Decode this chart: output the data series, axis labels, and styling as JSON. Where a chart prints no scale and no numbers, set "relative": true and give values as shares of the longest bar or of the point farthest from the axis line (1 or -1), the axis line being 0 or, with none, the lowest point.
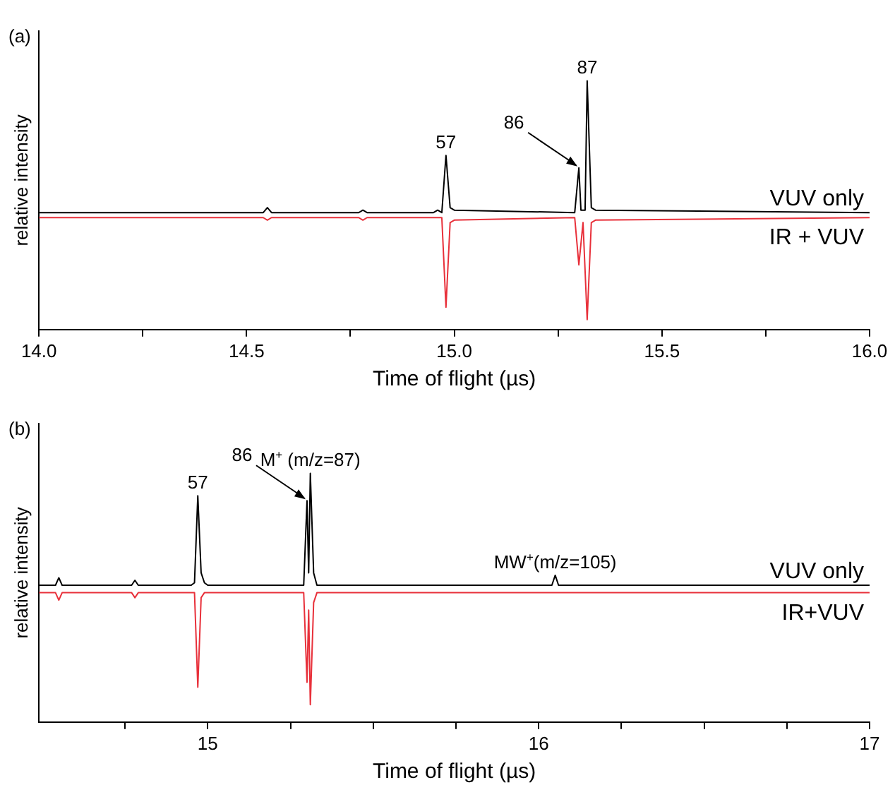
{
  "chart_data": [
    {
      "type": "line",
      "title": "(a)",
      "xlabel": "Time of flight (µs)",
      "ylabel": "relative intensity",
      "relative": true,
      "xlim": [
        14.0,
        16.0
      ],
      "xticks": [
        {
          "value": 14,
          "label": "14.0"
        },
        {
          "value": 14.25,
          "label": null
        },
        14.5,
        {
          "value": 14.75,
          "label": null
        },
        {
          "value": 15,
          "label": "15.0"
        },
        {
          "value": 15.25,
          "label": null
        },
        15.5,
        {
          "value": 15.75,
          "label": null
        },
        {
          "value": 16,
          "label": "16.0"
        }
      ],
      "grid": false,
      "legend": false,
      "marker": "none",
      "line_style": "solid",
      "series": [
        {
          "name": "VUV only",
          "color": "#000000",
          "x": [
            14.0,
            14.54,
            14.55,
            14.56,
            14.77,
            14.78,
            14.79,
            14.95,
            14.96,
            14.97,
            14.98,
            14.99,
            15.0,
            15.29,
            15.3,
            15.305,
            15.315,
            15.32,
            15.33,
            15.34,
            16.0
          ],
          "values": [
            0.47,
            0.47,
            0.49,
            0.47,
            0.47,
            0.48,
            0.47,
            0.47,
            0.48,
            0.47,
            0.7,
            0.49,
            0.48,
            0.47,
            0.65,
            0.48,
            0.48,
            1.0,
            0.49,
            0.48,
            0.47
          ]
        },
        {
          "name": "IR + VUV",
          "color": "#e8303a",
          "x": [
            14.0,
            14.54,
            14.55,
            14.56,
            14.77,
            14.78,
            14.79,
            14.97,
            14.98,
            14.99,
            15.0,
            15.29,
            15.3,
            15.31,
            15.32,
            15.33,
            15.34,
            16.0
          ],
          "values": [
            0.45,
            0.45,
            0.44,
            0.45,
            0.45,
            0.44,
            0.45,
            0.45,
            0.09,
            0.43,
            0.44,
            0.45,
            0.26,
            0.43,
            0.04,
            0.43,
            0.44,
            0.45
          ]
        }
      ],
      "annotations": [
        {
          "text": "57",
          "x": 14.98,
          "y": 0.7
        },
        {
          "text": "86",
          "x": 15.3,
          "y": 0.65
        },
        {
          "text": "87",
          "x": 15.32,
          "y": 1.0
        }
      ]
    },
    {
      "type": "line",
      "title": "(b)",
      "xlabel": "Time of flight (µs)",
      "ylabel": "relative intensity",
      "relative": true,
      "xlim": [
        14.49,
        17
      ],
      "xticks": [
        {
          "value": 14.75,
          "label": null
        },
        15,
        {
          "value": 15.25,
          "label": null
        },
        {
          "value": 15.5,
          "label": null
        },
        {
          "value": 15.75,
          "label": null
        },
        16,
        {
          "value": 16.25,
          "label": null
        },
        {
          "value": 16.5,
          "label": null
        },
        {
          "value": 16.75,
          "label": null
        },
        17
      ],
      "grid": false,
      "legend": false,
      "marker": "none",
      "line_style": "solid",
      "series": [
        {
          "name": "VUV only",
          "color": "#000000",
          "x": [
            14.49,
            14.54,
            14.55,
            14.56,
            14.77,
            14.78,
            14.79,
            14.95,
            14.96,
            14.97,
            14.98,
            14.99,
            15.0,
            15.29,
            15.3,
            15.305,
            15.31,
            15.32,
            15.33,
            16.04,
            16.05,
            16.06,
            17.0
          ],
          "values": [
            0.55,
            0.55,
            0.58,
            0.55,
            0.55,
            0.57,
            0.55,
            0.55,
            0.56,
            0.91,
            0.6,
            0.56,
            0.55,
            0.55,
            0.89,
            0.6,
            1.0,
            0.6,
            0.55,
            0.55,
            0.59,
            0.55,
            0.55
          ]
        },
        {
          "name": "IR+VUV",
          "color": "#e8303a",
          "x": [
            14.49,
            14.54,
            14.55,
            14.56,
            14.77,
            14.78,
            14.79,
            14.96,
            14.97,
            14.98,
            14.99,
            15.29,
            15.3,
            15.305,
            15.31,
            15.32,
            15.33,
            17.0
          ],
          "values": [
            0.52,
            0.52,
            0.49,
            0.52,
            0.52,
            0.5,
            0.52,
            0.52,
            0.14,
            0.5,
            0.52,
            0.52,
            0.16,
            0.45,
            0.07,
            0.48,
            0.52,
            0.52
          ]
        }
      ],
      "annotations": [
        {
          "text": "57",
          "x": 14.97,
          "y": 0.91
        },
        {
          "text": "86",
          "x": 15.3,
          "y": 0.89
        },
        {
          "text": "M$^{+}$ (m/z=87)",
          "x": 15.31,
          "y": 1.0
        },
        {
          "text": "MW$^{+}$(m/z=105)",
          "x": 16.05,
          "y": 0.59
        }
      ]
    }
  ]
}
